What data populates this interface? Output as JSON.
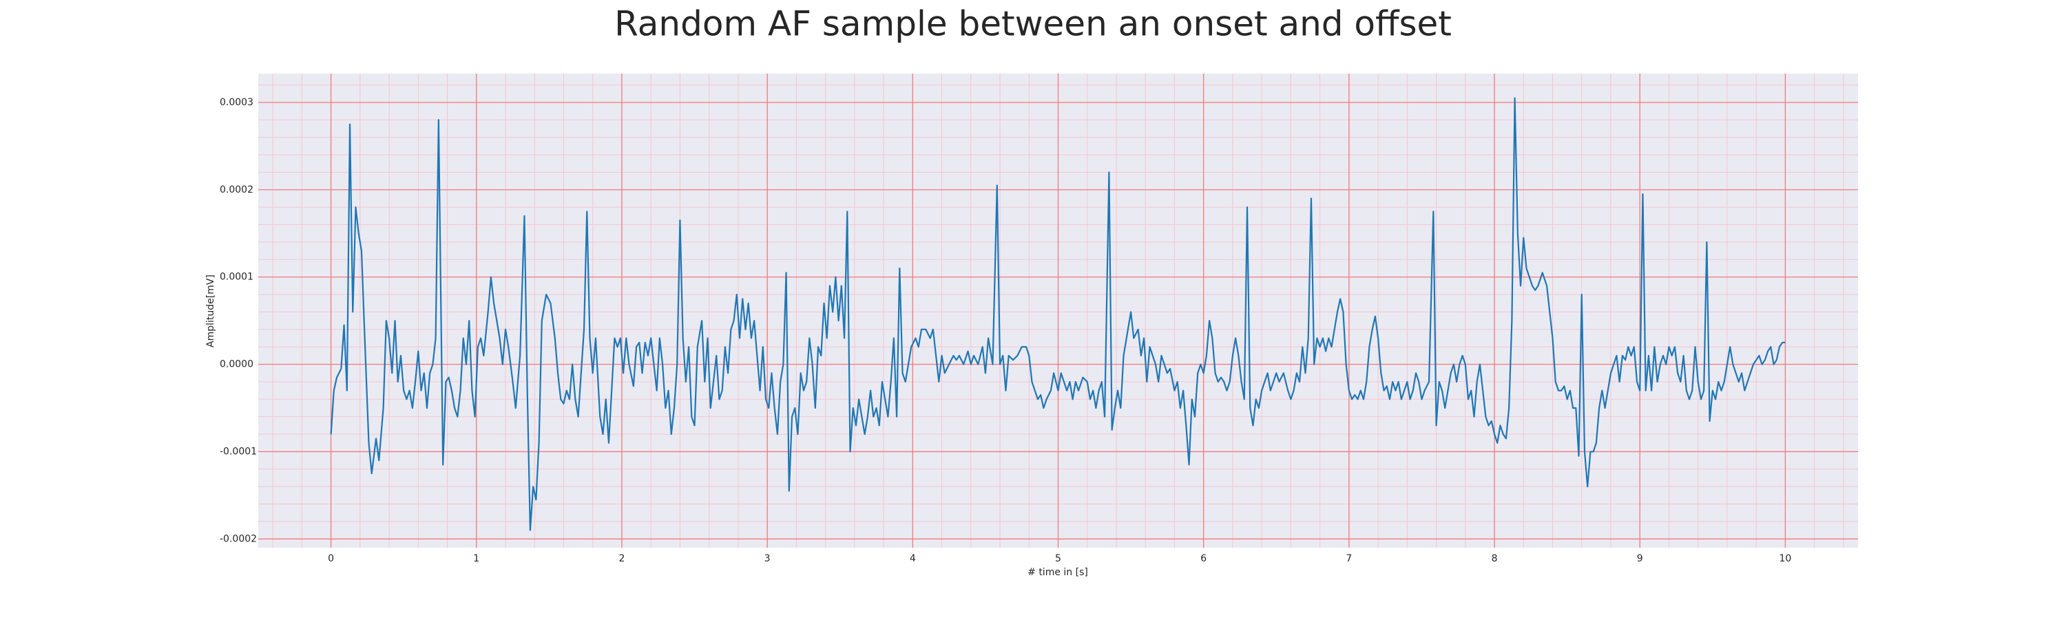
{
  "chart_data": {
    "type": "line",
    "title": "Random AF sample between an onset and offset",
    "x_label": "# time in [s]",
    "y_label": "Amplitude[mV]",
    "color": "#1f77b4",
    "grid": true,
    "minor_grid": true,
    "xlim": [
      -0.5,
      10.5
    ],
    "ylim": [
      -0.00021,
      0.000333
    ],
    "xticks": [
      0,
      1,
      2,
      3,
      4,
      5,
      6,
      7,
      8,
      9,
      10
    ],
    "yticks": [
      -0.0002,
      -0.0001,
      {
        "value": 0,
        "label": "0.0000"
      },
      0.0001,
      0.0002,
      0.0003
    ],
    "x": [
      0,
      0.02,
      0.04,
      0.07,
      0.09,
      0.11,
      0.13,
      0.15,
      0.17,
      0.19,
      0.21,
      0.23,
      0.26,
      0.28,
      0.31,
      0.33,
      0.36,
      0.38,
      0.4,
      0.42,
      0.44,
      0.46,
      0.48,
      0.5,
      0.52,
      0.54,
      0.56,
      0.58,
      0.6,
      0.62,
      0.64,
      0.66,
      0.68,
      0.7,
      0.72,
      0.74,
      0.77,
      0.79,
      0.81,
      0.83,
      0.85,
      0.87,
      0.89,
      0.91,
      0.93,
      0.95,
      0.97,
      0.99,
      1.01,
      1.03,
      1.05,
      1.08,
      1.1,
      1.12,
      1.14,
      1.16,
      1.18,
      1.2,
      1.22,
      1.25,
      1.27,
      1.3,
      1.33,
      1.35,
      1.37,
      1.39,
      1.41,
      1.43,
      1.45,
      1.48,
      1.51,
      1.54,
      1.56,
      1.58,
      1.6,
      1.62,
      1.64,
      1.66,
      1.68,
      1.7,
      1.72,
      1.74,
      1.76,
      1.78,
      1.8,
      1.82,
      1.85,
      1.87,
      1.89,
      1.91,
      1.93,
      1.95,
      1.97,
      1.99,
      2.01,
      2.03,
      2.05,
      2.08,
      2.1,
      2.12,
      2.14,
      2.16,
      2.18,
      2.2,
      2.22,
      2.24,
      2.26,
      2.28,
      2.3,
      2.32,
      2.34,
      2.36,
      2.38,
      2.4,
      2.42,
      2.44,
      2.46,
      2.48,
      2.5,
      2.52,
      2.55,
      2.57,
      2.59,
      2.61,
      2.63,
      2.65,
      2.67,
      2.69,
      2.71,
      2.73,
      2.75,
      2.77,
      2.79,
      2.81,
      2.83,
      2.85,
      2.87,
      2.89,
      2.91,
      2.93,
      2.95,
      2.97,
      2.99,
      3.01,
      3.03,
      3.05,
      3.07,
      3.09,
      3.11,
      3.13,
      3.15,
      3.17,
      3.19,
      3.21,
      3.23,
      3.25,
      3.27,
      3.29,
      3.31,
      3.33,
      3.35,
      3.37,
      3.39,
      3.41,
      3.43,
      3.45,
      3.47,
      3.49,
      3.51,
      3.53,
      3.55,
      3.57,
      3.59,
      3.61,
      3.63,
      3.65,
      3.67,
      3.69,
      3.71,
      3.73,
      3.75,
      3.77,
      3.79,
      3.81,
      3.83,
      3.85,
      3.87,
      3.89,
      3.91,
      3.93,
      3.95,
      3.97,
      3.99,
      4.02,
      4.04,
      4.06,
      4.09,
      4.12,
      4.14,
      4.16,
      4.18,
      4.2,
      4.22,
      4.25,
      4.28,
      4.3,
      4.32,
      4.35,
      4.38,
      4.4,
      4.42,
      4.45,
      4.48,
      4.5,
      4.52,
      4.55,
      4.58,
      4.6,
      4.62,
      4.64,
      4.66,
      4.69,
      4.72,
      4.75,
      4.78,
      4.8,
      4.82,
      4.84,
      4.86,
      4.88,
      4.9,
      4.92,
      4.95,
      4.97,
      5.0,
      5.02,
      5.04,
      5.06,
      5.08,
      5.1,
      5.12,
      5.14,
      5.17,
      5.2,
      5.22,
      5.24,
      5.26,
      5.28,
      5.3,
      5.32,
      5.35,
      5.37,
      5.39,
      5.41,
      5.43,
      5.45,
      5.47,
      5.5,
      5.52,
      5.55,
      5.57,
      5.59,
      5.61,
      5.63,
      5.65,
      5.67,
      5.69,
      5.71,
      5.73,
      5.75,
      5.77,
      5.8,
      5.82,
      5.84,
      5.86,
      5.88,
      5.9,
      5.92,
      5.94,
      5.96,
      5.98,
      6.0,
      6.02,
      6.04,
      6.06,
      6.08,
      6.1,
      6.12,
      6.14,
      6.16,
      6.18,
      6.2,
      6.22,
      6.24,
      6.26,
      6.28,
      6.3,
      6.32,
      6.34,
      6.36,
      6.38,
      6.4,
      6.42,
      6.44,
      6.46,
      6.48,
      6.5,
      6.52,
      6.55,
      6.58,
      6.6,
      6.62,
      6.64,
      6.66,
      6.68,
      6.7,
      6.72,
      6.74,
      6.76,
      6.78,
      6.8,
      6.82,
      6.84,
      6.86,
      6.88,
      6.9,
      6.92,
      6.94,
      6.96,
      6.98,
      7.0,
      7.02,
      7.04,
      7.06,
      7.08,
      7.1,
      7.12,
      7.14,
      7.16,
      7.18,
      7.2,
      7.22,
      7.24,
      7.26,
      7.28,
      7.3,
      7.32,
      7.34,
      7.36,
      7.38,
      7.4,
      7.42,
      7.44,
      7.46,
      7.48,
      7.5,
      7.52,
      7.55,
      7.58,
      7.6,
      7.62,
      7.64,
      7.66,
      7.68,
      7.7,
      7.72,
      7.74,
      7.76,
      7.78,
      7.8,
      7.82,
      7.84,
      7.86,
      7.88,
      7.9,
      7.92,
      7.94,
      7.96,
      7.98,
      8.0,
      8.02,
      8.04,
      8.06,
      8.08,
      8.1,
      8.12,
      8.14,
      8.16,
      8.18,
      8.2,
      8.22,
      8.24,
      8.26,
      8.28,
      8.3,
      8.33,
      8.36,
      8.38,
      8.4,
      8.42,
      8.44,
      8.46,
      8.48,
      8.5,
      8.52,
      8.54,
      8.56,
      8.58,
      8.6,
      8.62,
      8.64,
      8.66,
      8.68,
      8.7,
      8.72,
      8.74,
      8.76,
      8.78,
      8.8,
      8.82,
      8.84,
      8.86,
      8.88,
      8.9,
      8.92,
      8.94,
      8.96,
      8.98,
      9.0,
      9.02,
      9.04,
      9.06,
      9.08,
      9.1,
      9.12,
      9.14,
      9.16,
      9.18,
      9.2,
      9.22,
      9.24,
      9.26,
      9.28,
      9.3,
      9.32,
      9.34,
      9.36,
      9.38,
      9.4,
      9.42,
      9.44,
      9.46,
      9.48,
      9.5,
      9.52,
      9.54,
      9.56,
      9.58,
      9.6,
      9.62,
      9.64,
      9.66,
      9.68,
      9.7,
      9.72,
      9.74,
      9.76,
      9.78,
      9.8,
      9.82,
      9.84,
      9.86,
      9.88,
      9.9,
      9.92,
      9.94,
      9.96,
      9.98,
      10.0
    ],
    "values": [
      -8e-05,
      -3e-05,
      -1.5e-05,
      -5e-06,
      4.5e-05,
      -3e-05,
      0.000275,
      6e-05,
      0.00018,
      0.00015,
      0.00013,
      4e-05,
      -9e-05,
      -0.000125,
      -8.5e-05,
      -0.00011,
      -5e-05,
      5e-05,
      3e-05,
      -1e-05,
      5e-05,
      -2e-05,
      1e-05,
      -3e-05,
      -4e-05,
      -3e-05,
      -5e-05,
      -2e-05,
      1.5e-05,
      -3e-05,
      -1e-05,
      -5e-05,
      -1e-05,
      0,
      3e-05,
      0.00028,
      -0.000115,
      -2e-05,
      -1.5e-05,
      -3e-05,
      -5e-05,
      -6e-05,
      -3e-05,
      3e-05,
      0,
      5e-05,
      -3e-05,
      -6e-05,
      2e-05,
      3e-05,
      1e-05,
      6e-05,
      0.0001,
      7e-05,
      5e-05,
      3e-05,
      0,
      4e-05,
      2e-05,
      -2e-05,
      -5e-05,
      1e-05,
      0.00017,
      -3e-05,
      -0.00019,
      -0.00014,
      -0.000155,
      -9e-05,
      5e-05,
      8e-05,
      7e-05,
      3e-05,
      -1e-05,
      -4e-05,
      -4.5e-05,
      -3e-05,
      -4e-05,
      0,
      -4e-05,
      -6e-05,
      -1e-05,
      4e-05,
      0.000175,
      3e-05,
      -1e-05,
      3e-05,
      -6e-05,
      -8e-05,
      -4e-05,
      -9e-05,
      -3e-05,
      3e-05,
      2e-05,
      3e-05,
      -1e-05,
      3e-05,
      0,
      -2.5e-05,
      2e-05,
      2.5e-05,
      -1e-05,
      2.5e-05,
      1e-05,
      3e-05,
      0,
      -3e-05,
      3e-05,
      0,
      -5e-05,
      -3e-05,
      -8e-05,
      -5e-05,
      0,
      0.000165,
      3e-05,
      -2e-05,
      2e-05,
      -6e-05,
      -7e-05,
      2e-05,
      5e-05,
      -2e-05,
      3e-05,
      -5e-05,
      -2e-05,
      1e-05,
      -4e-05,
      -3e-05,
      2e-05,
      -1e-05,
      4e-05,
      5e-05,
      8e-05,
      3e-05,
      7.5e-05,
      4e-05,
      7e-05,
      3e-05,
      5e-05,
      1e-05,
      -3e-05,
      2e-05,
      -4e-05,
      -5e-05,
      -1e-05,
      -5e-05,
      -8e-05,
      -2e-05,
      0,
      0.000105,
      -0.000145,
      -6e-05,
      -5e-05,
      -8e-05,
      -1e-05,
      -3e-05,
      -2e-05,
      3e-05,
      0,
      -5e-05,
      2e-05,
      1e-05,
      7e-05,
      3e-05,
      9e-05,
      6e-05,
      0.0001,
      5e-05,
      9e-05,
      3e-05,
      0.000175,
      -0.0001,
      -5e-05,
      -7e-05,
      -4e-05,
      -6e-05,
      -8e-05,
      -6e-05,
      -3e-05,
      -6e-05,
      -5e-05,
      -7e-05,
      -2e-05,
      -4e-05,
      -6e-05,
      -2e-05,
      3e-05,
      -6e-05,
      0.00011,
      -1e-05,
      -2e-05,
      0,
      2e-05,
      3e-05,
      2e-05,
      4e-05,
      4e-05,
      3e-05,
      4e-05,
      1e-05,
      -2e-05,
      1e-05,
      -1e-05,
      0,
      1e-05,
      5e-06,
      1e-05,
      0,
      1.5e-05,
      0,
      1e-05,
      0,
      2e-05,
      -1e-05,
      3e-05,
      0,
      0.000205,
      0,
      1e-05,
      -3e-05,
      1e-05,
      5e-06,
      1e-05,
      2e-05,
      2e-05,
      1e-05,
      -2e-05,
      -3e-05,
      -4e-05,
      -3.5e-05,
      -5e-05,
      -4e-05,
      -3e-05,
      -1e-05,
      -3e-05,
      -1e-05,
      -2e-05,
      -3e-05,
      -2e-05,
      -4e-05,
      -2e-05,
      -3e-05,
      -1.5e-05,
      -2e-05,
      -4e-05,
      -3e-05,
      -5e-05,
      -3e-05,
      -2e-05,
      -6e-05,
      0.00022,
      -7.5e-05,
      -5e-05,
      -3e-05,
      -5e-05,
      1e-05,
      3e-05,
      6e-05,
      3e-05,
      4e-05,
      1e-05,
      3e-05,
      -2e-05,
      2e-05,
      1e-05,
      0,
      -2e-05,
      1e-05,
      0,
      -1e-05,
      -5e-06,
      -3e-05,
      -2e-05,
      -5e-05,
      -3e-05,
      -7e-05,
      -0.000115,
      -4e-05,
      -6e-05,
      -1e-05,
      0,
      -1e-05,
      1e-05,
      5e-05,
      3e-05,
      -1e-05,
      -2e-05,
      -1.5e-05,
      -2e-05,
      -3e-05,
      -2e-05,
      1e-05,
      3e-05,
      1e-05,
      -2e-05,
      -4e-05,
      0.00018,
      -5e-05,
      -7e-05,
      -4e-05,
      -5e-05,
      -3e-05,
      -2e-05,
      -1e-05,
      -3e-05,
      -2e-05,
      -1e-05,
      -2e-05,
      -1e-05,
      -3e-05,
      -4e-05,
      -3e-05,
      -1e-05,
      -2e-05,
      2e-05,
      -1e-05,
      3e-05,
      0.00019,
      0,
      3e-05,
      2e-05,
      3e-05,
      1.5e-05,
      3e-05,
      2e-05,
      4e-05,
      6e-05,
      7.5e-05,
      6e-05,
      0,
      -3e-05,
      -4e-05,
      -3.5e-05,
      -4e-05,
      -3e-05,
      -4e-05,
      -2e-05,
      2e-05,
      4e-05,
      5.5e-05,
      3e-05,
      -1e-05,
      -3e-05,
      -2.5e-05,
      -4e-05,
      -2e-05,
      -3e-05,
      -2e-05,
      -4e-05,
      -3e-05,
      -2e-05,
      -4e-05,
      -3e-05,
      -1e-05,
      -2e-05,
      -4e-05,
      -3e-05,
      -2e-05,
      0.000175,
      -7e-05,
      -2e-05,
      -3e-05,
      -5e-05,
      -3e-05,
      -1e-05,
      0,
      -2e-05,
      0,
      1e-05,
      0,
      -4e-05,
      -3e-05,
      -6e-05,
      -2e-05,
      0,
      -3e-05,
      -6e-05,
      -7e-05,
      -6.5e-05,
      -8e-05,
      -9e-05,
      -7e-05,
      -8e-05,
      -8.5e-05,
      -5e-05,
      5e-05,
      0.000305,
      0.00015,
      9e-05,
      0.000145,
      0.00011,
      0.0001,
      9e-05,
      8.5e-05,
      9e-05,
      0.000105,
      9e-05,
      6e-05,
      3e-05,
      -2e-05,
      -3e-05,
      -3e-05,
      -2.5e-05,
      -4e-05,
      -3e-05,
      -5e-05,
      -5e-05,
      -0.000105,
      8e-05,
      -0.0001,
      -0.00014,
      -0.0001,
      -0.0001,
      -9e-05,
      -5e-05,
      -3e-05,
      -5e-05,
      -3e-05,
      -1e-05,
      0,
      1e-05,
      -2e-05,
      1e-05,
      5e-06,
      2e-05,
      1e-05,
      2e-05,
      -2e-05,
      -3e-05,
      0.000195,
      -3e-05,
      1e-05,
      -3e-05,
      2e-05,
      -2e-05,
      0,
      1e-05,
      0,
      2e-05,
      1e-05,
      2e-05,
      -1e-05,
      -2e-05,
      1e-05,
      -3e-05,
      -4e-05,
      -3e-05,
      2e-05,
      -2e-05,
      -4e-05,
      -3e-05,
      0.00014,
      -6.5e-05,
      -3e-05,
      -4e-05,
      -2e-05,
      -3e-05,
      -2e-05,
      0,
      2e-05,
      0,
      -1e-05,
      -2e-05,
      -1e-05,
      -3e-05,
      -2e-05,
      -1e-05,
      0,
      5e-06,
      1e-05,
      0,
      5e-06,
      1.5e-05,
      2e-05,
      0,
      5e-06,
      2e-05,
      2.5e-05,
      2.5e-05
    ]
  }
}
